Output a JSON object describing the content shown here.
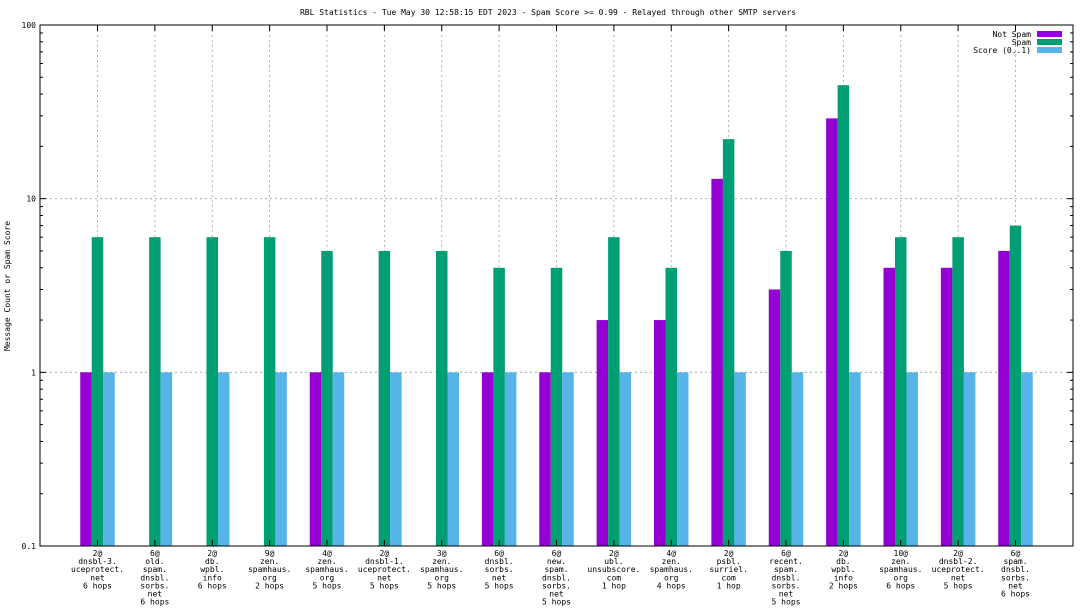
{
  "chart_data": {
    "type": "bar",
    "title": "RBL Statistics - Tue May 30 12:58:15 EDT 2023 - Spam Score >= 0.99 - Relayed through other SMTP servers",
    "ylabel": "Message Count or Spam Score",
    "yscale": "log",
    "ylim": [
      0.1,
      100
    ],
    "yticks": [
      {
        "value": 0.1,
        "label": "0.1"
      },
      {
        "value": 1,
        "label": "1"
      },
      {
        "value": 10,
        "label": "10"
      },
      {
        "value": 100,
        "label": "100"
      }
    ],
    "grid": true,
    "legend_position": "top-right",
    "categories": [
      [
        "2@",
        "dnsbl-3.",
        "uceprotect.",
        "net",
        "6 hops"
      ],
      [
        "6@",
        "old.",
        "spam.",
        "dnsbl.",
        "sorbs.",
        "net",
        "6 hops"
      ],
      [
        "2@",
        "db.",
        "wpbl.",
        "info",
        "6 hops"
      ],
      [
        "9@",
        "zen.",
        "spamhaus.",
        "org",
        "2 hops"
      ],
      [
        "4@",
        "zen.",
        "spamhaus.",
        "org",
        "5 hops"
      ],
      [
        "2@",
        "dnsbl-1.",
        "uceprotect.",
        "net",
        "5 hops"
      ],
      [
        "3@",
        "zen.",
        "spamhaus.",
        "org",
        "5 hops"
      ],
      [
        "6@",
        "dnsbl.",
        "sorbs.",
        "net",
        "5 hops"
      ],
      [
        "6@",
        "new.",
        "spam.",
        "dnsbl.",
        "sorbs.",
        "net",
        "5 hops"
      ],
      [
        "2@",
        "ubl.",
        "unsubscore.",
        "com",
        "1 hop"
      ],
      [
        "4@",
        "zen.",
        "spamhaus.",
        "org",
        "4 hops"
      ],
      [
        "2@",
        "psbl.",
        "surriel.",
        "com",
        "1 hop"
      ],
      [
        "6@",
        "recent.",
        "spam.",
        "dnsbl.",
        "sorbs.",
        "net",
        "5 hops"
      ],
      [
        "2@",
        "db.",
        "wpbl.",
        "info",
        "2 hops"
      ],
      [
        "10@",
        "zen.",
        "spamhaus.",
        "org",
        "6 hops"
      ],
      [
        "2@",
        "dnsbl-2.",
        "uceprotect.",
        "net",
        "5 hops"
      ],
      [
        "6@",
        "spam.",
        "dnsbl.",
        "sorbs.",
        "net",
        "6 hops"
      ]
    ],
    "series": [
      {
        "name": "Not Spam",
        "color": "#9400d3",
        "values": [
          1,
          0,
          0,
          0,
          1,
          0,
          0,
          1,
          1,
          2,
          2,
          13,
          3,
          29,
          4,
          4,
          5
        ]
      },
      {
        "name": "Spam",
        "color": "#009e73",
        "values": [
          6,
          6,
          6,
          6,
          5,
          5,
          5,
          4,
          4,
          6,
          4,
          22,
          5,
          45,
          6,
          6,
          7
        ]
      },
      {
        "name": "Score (0..1)",
        "color": "#56b4e9",
        "values": [
          1,
          1,
          1,
          1,
          1,
          1,
          1,
          1,
          1,
          1,
          1,
          1,
          1,
          1,
          1,
          1,
          1
        ]
      }
    ]
  }
}
